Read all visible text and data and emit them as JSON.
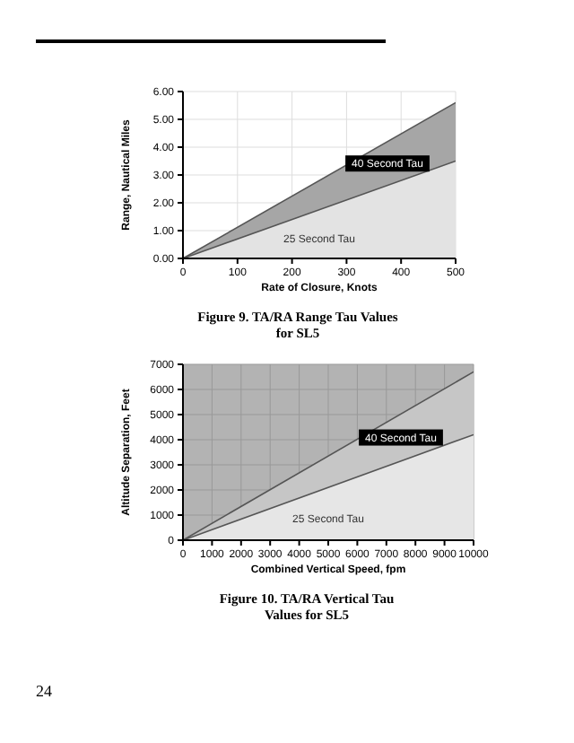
{
  "chart_data": [
    {
      "type": "area",
      "title": "Figure 9. TA/RA Range Tau Values for SL5",
      "xlabel": "Rate of Closure, Knots",
      "ylabel": "Range, Nautical Miles",
      "x": [
        0,
        500
      ],
      "series": [
        {
          "name": "40 Second Tau",
          "color": "#a6a6a6",
          "values": [
            0,
            5.6
          ]
        },
        {
          "name": "25 Second Tau",
          "color": "#e3e3e3",
          "values": [
            0,
            3.5
          ]
        }
      ],
      "xlim": [
        0,
        500
      ],
      "xticks": [
        0,
        100,
        200,
        300,
        400,
        500
      ],
      "ylim": [
        0,
        6
      ],
      "yticks": [
        {
          "value": 0,
          "label": "0.00"
        },
        {
          "value": 1,
          "label": "1.00"
        },
        {
          "value": 2,
          "label": "2.00"
        },
        {
          "value": 3,
          "label": "3.00"
        },
        {
          "value": 4,
          "label": "4.00"
        },
        {
          "value": 5,
          "label": "5.00"
        },
        {
          "value": 6,
          "label": "6.00"
        }
      ],
      "grid": true
    },
    {
      "type": "area",
      "title": "Figure 10. TA/RA Vertical Tau Values for SL5",
      "xlabel": "Combined Vertical Speed, fpm",
      "ylabel": "Altitude Separation, Feet",
      "x": [
        0,
        10000
      ],
      "series": [
        {
          "name": "40 Second Tau",
          "color": "#c6c6c6",
          "values": [
            0,
            6700
          ]
        },
        {
          "name": "25 Second Tau",
          "color": "#e6e6e6",
          "values": [
            0,
            4200
          ]
        }
      ],
      "xlim": [
        0,
        10000
      ],
      "xticks": [
        0,
        1000,
        2000,
        3000,
        4000,
        5000,
        6000,
        7000,
        8000,
        9000,
        10000
      ],
      "ylim": [
        0,
        7000
      ],
      "yticks": [
        0,
        1000,
        2000,
        3000,
        4000,
        5000,
        6000,
        7000
      ],
      "grid": true,
      "annotations": [
        "24"
      ]
    }
  ]
}
